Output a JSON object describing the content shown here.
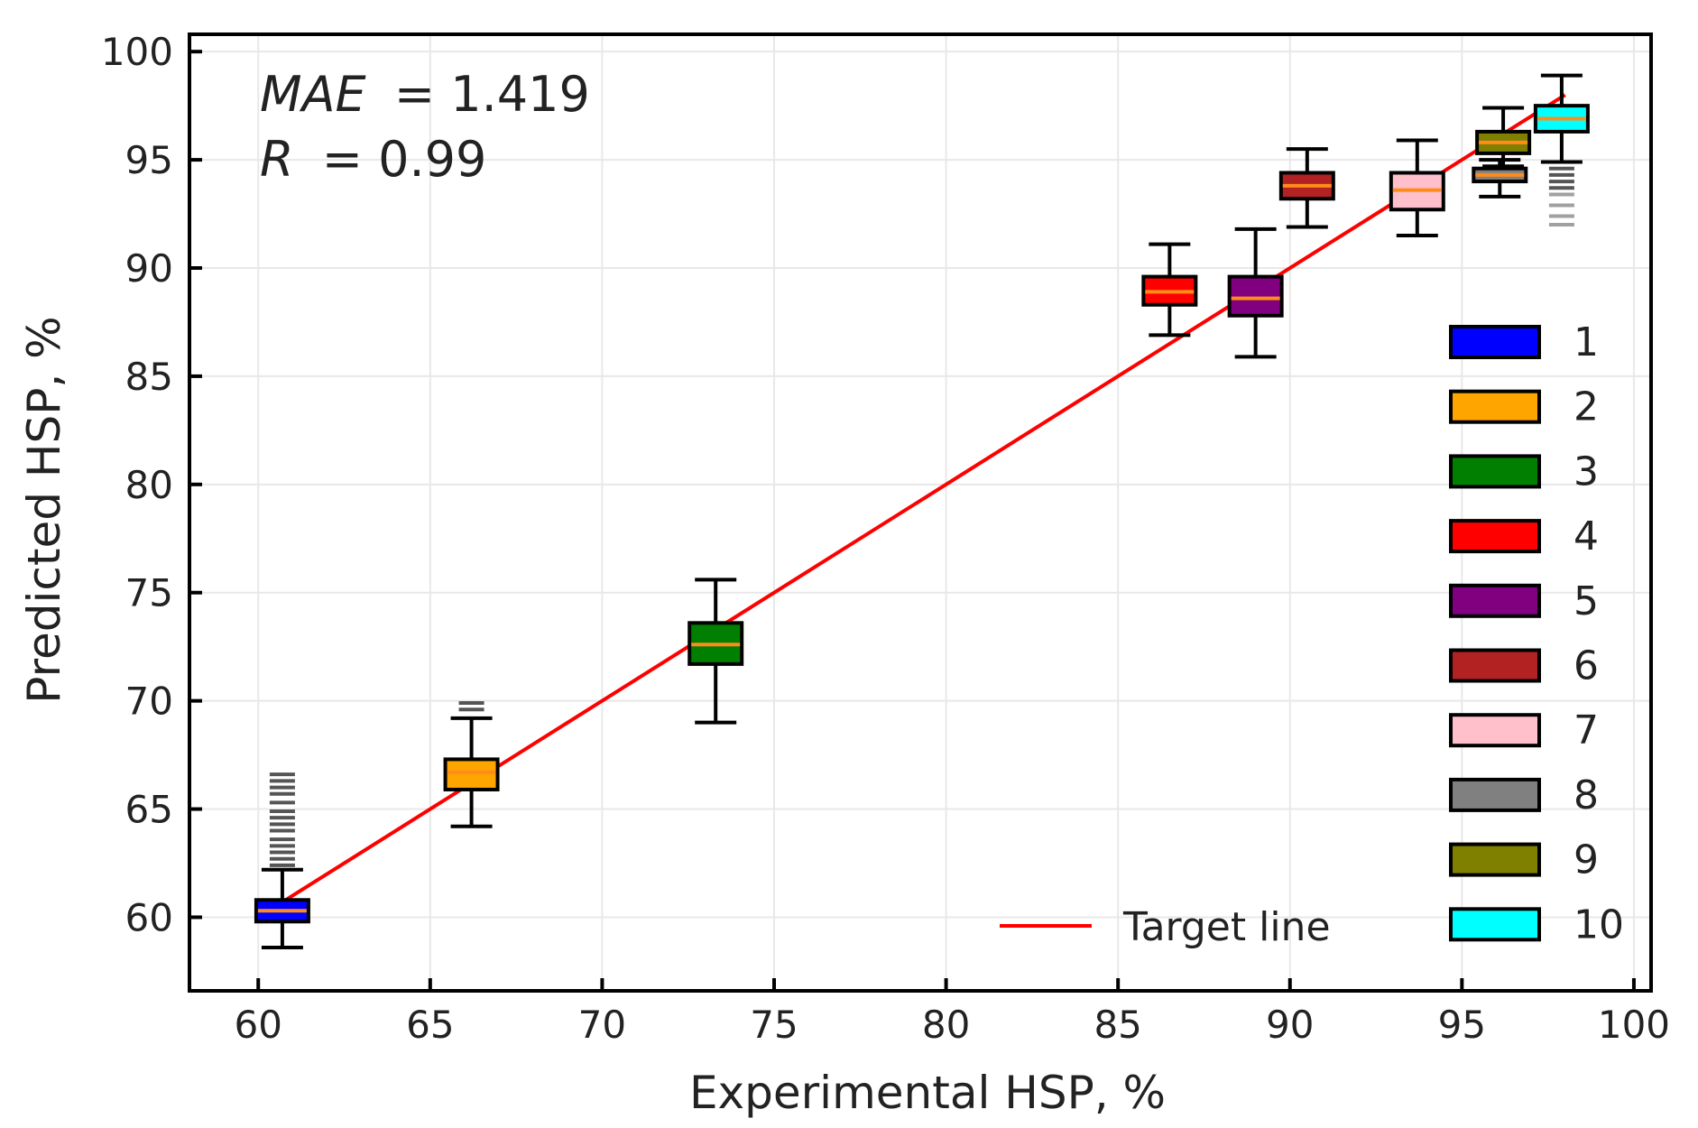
{
  "chart_data": {
    "type": "box",
    "xlabel": "Experimental HSP, %",
    "ylabel": "Predicted HSP, %",
    "xlim": [
      58,
      100.5
    ],
    "ylim": [
      56.6,
      100.8
    ],
    "xticks": [
      60,
      65,
      70,
      75,
      80,
      85,
      90,
      95,
      100
    ],
    "yticks": [
      60,
      65,
      70,
      75,
      80,
      85,
      90,
      95,
      100
    ],
    "grid": true,
    "annotations": {
      "mae_label": "MAE",
      "mae_value": "= 1.419",
      "r_label": "R",
      "r_value": "= 0.99"
    },
    "target_line": {
      "label": "Target line",
      "color": "#ff0000",
      "from": [
        60.4,
        60.4
      ],
      "to": [
        98,
        98
      ]
    },
    "colors": {
      "median": "#ff8c1a",
      "outline": "#000000",
      "outlier_dark": "#555555",
      "outlier_light": "#a0a0a0",
      "grid": "#e8e8e8"
    },
    "series": [
      {
        "name": "1",
        "color": "#0000ff",
        "x": 60.7,
        "q1": 59.8,
        "median": 60.3,
        "q3": 60.8,
        "whisker_low": 58.6,
        "whisker_high": 62.2,
        "outliers": [
          62.4,
          62.7,
          63.0,
          63.3,
          63.6,
          64.0,
          64.3,
          64.6,
          64.9,
          65.3,
          65.7,
          66.0,
          66.3,
          66.6
        ]
      },
      {
        "name": "2",
        "color": "#ffa500",
        "x": 66.2,
        "q1": 65.9,
        "median": 66.7,
        "q3": 67.3,
        "whisker_low": 64.2,
        "whisker_high": 69.2,
        "outliers": [
          69.6,
          69.9
        ]
      },
      {
        "name": "3",
        "color": "#007f00",
        "x": 73.3,
        "q1": 71.7,
        "median": 72.6,
        "q3": 73.6,
        "whisker_low": 69.0,
        "whisker_high": 75.6,
        "outliers": []
      },
      {
        "name": "4",
        "color": "#ff0000",
        "x": 86.5,
        "q1": 88.3,
        "median": 88.9,
        "q3": 89.6,
        "whisker_low": 86.9,
        "whisker_high": 91.1,
        "outliers": []
      },
      {
        "name": "5",
        "color": "#800080",
        "x": 89.0,
        "q1": 87.8,
        "median": 88.6,
        "q3": 89.6,
        "whisker_low": 85.9,
        "whisker_high": 91.8,
        "outliers": []
      },
      {
        "name": "6",
        "color": "#b22222",
        "x": 90.5,
        "q1": 93.2,
        "median": 93.8,
        "q3": 94.4,
        "whisker_low": 91.9,
        "whisker_high": 95.5,
        "outliers": []
      },
      {
        "name": "7",
        "color": "#ffc0cb",
        "x": 93.7,
        "q1": 92.7,
        "median": 93.6,
        "q3": 94.4,
        "whisker_low": 91.5,
        "whisker_high": 95.9,
        "outliers": []
      },
      {
        "name": "8",
        "color": "#808080",
        "x": 96.1,
        "q1": 94.0,
        "median": 94.3,
        "q3": 94.6,
        "whisker_low": 93.3,
        "whisker_high": 95.0,
        "outliers": []
      },
      {
        "name": "9",
        "color": "#808000",
        "x": 96.2,
        "q1": 95.3,
        "median": 95.8,
        "q3": 96.3,
        "whisker_low": 94.7,
        "whisker_high": 97.4,
        "outliers": []
      },
      {
        "name": "10",
        "color": "#00ffff",
        "x": 97.9,
        "q1": 96.3,
        "median": 96.9,
        "q3": 97.5,
        "whisker_low": 94.9,
        "whisker_high": 98.9,
        "outliers": [
          92.0,
          92.4,
          92.9,
          93.4,
          93.7,
          94.0,
          94.3,
          94.6
        ]
      }
    ]
  }
}
